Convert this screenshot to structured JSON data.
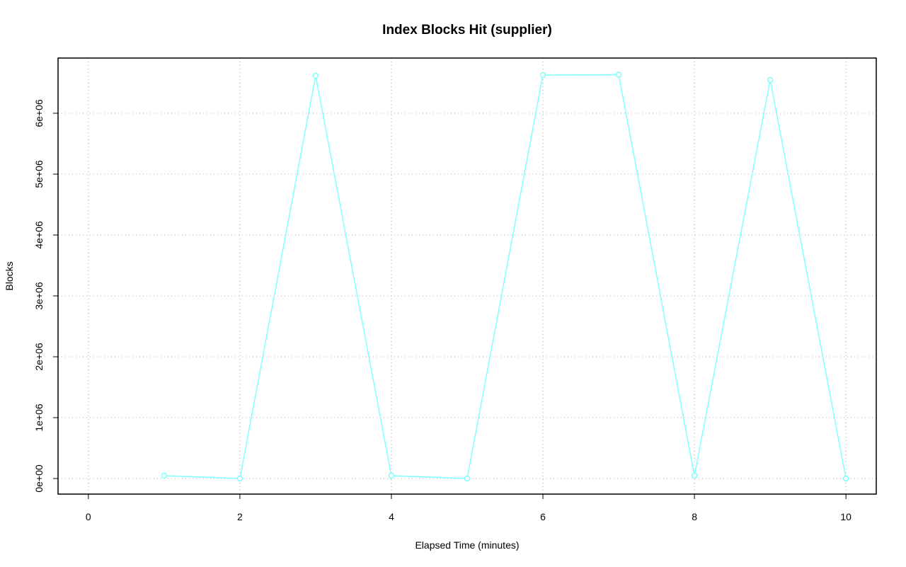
{
  "chart_data": {
    "type": "line",
    "title": "Index Blocks Hit (supplier)",
    "x_label": "Elapsed Time (minutes)",
    "y_label": "Blocks",
    "series": [
      {
        "color": "#80ffff",
        "x": [
          1,
          2,
          3,
          4,
          5,
          6,
          7,
          8,
          9,
          10
        ],
        "values": [
          46500,
          0,
          6616000,
          46500,
          0,
          6628000,
          6634000,
          46500,
          6547000,
          0
        ]
      }
    ],
    "xlim": [
      -0.4,
      10.4
    ],
    "xticks": [
      0,
      2,
      4,
      6,
      8,
      10
    ],
    "ylim": [
      -256000,
      6907000
    ],
    "yticks": [
      {
        "value": 0,
        "label": "0e+00"
      },
      {
        "value": 1000000,
        "label": "1e+06"
      },
      {
        "value": 2000000,
        "label": "2e+06"
      },
      {
        "value": 3000000,
        "label": "3e+06"
      },
      {
        "value": 4000000,
        "label": "4e+06"
      },
      {
        "value": 5000000,
        "label": "5e+06"
      },
      {
        "value": 6000000,
        "label": "6e+06"
      }
    ],
    "grid": true
  }
}
